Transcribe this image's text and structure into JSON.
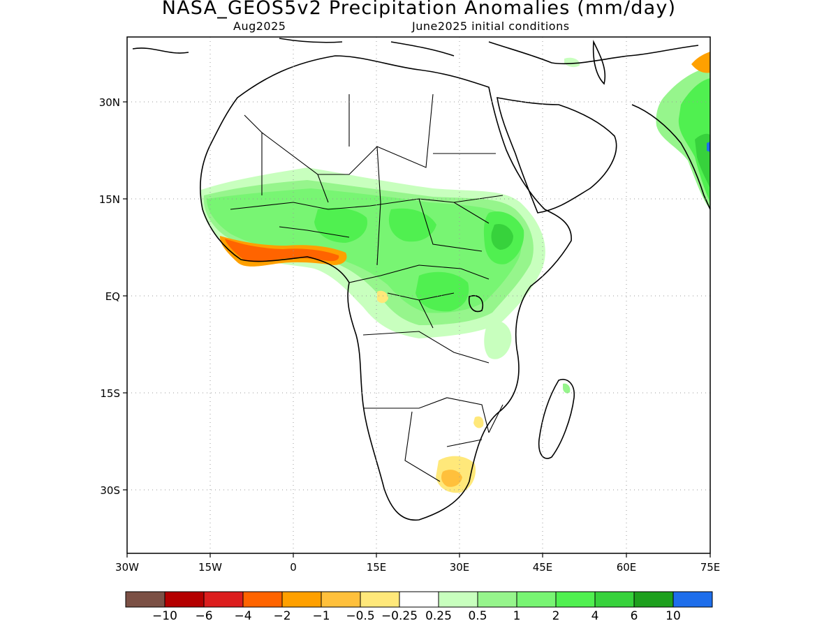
{
  "map": {
    "title": "NASA_GEOS5v2 Precipitation Anomalies (mm/day)",
    "subtitle_left": "Aug2025",
    "subtitle_right": "June2025 initial conditions",
    "region": "Africa",
    "lat_labels": [
      "30N",
      "15N",
      "EQ",
      "15S",
      "30S"
    ],
    "lon_labels": [
      "30W",
      "15W",
      "0",
      "15E",
      "30E",
      "45E",
      "60E",
      "75E"
    ],
    "grid": "dotted"
  },
  "colorbar": {
    "colors": [
      "#7b5045",
      "#b40000",
      "#dc1e1e",
      "#ff6400",
      "#ffa000",
      "#ffc03c",
      "#ffe87a",
      "#ffffff",
      "#c8ffbe",
      "#96f58c",
      "#78f573",
      "#50f050",
      "#37d23c",
      "#1ea01e",
      "#1e6eeb"
    ],
    "labels": [
      "−10",
      "−6",
      "−4",
      "−2",
      "−1",
      "−0.5",
      "−0.25",
      "0.25",
      "0.5",
      "1",
      "2",
      "4",
      "6",
      "10"
    ]
  }
}
